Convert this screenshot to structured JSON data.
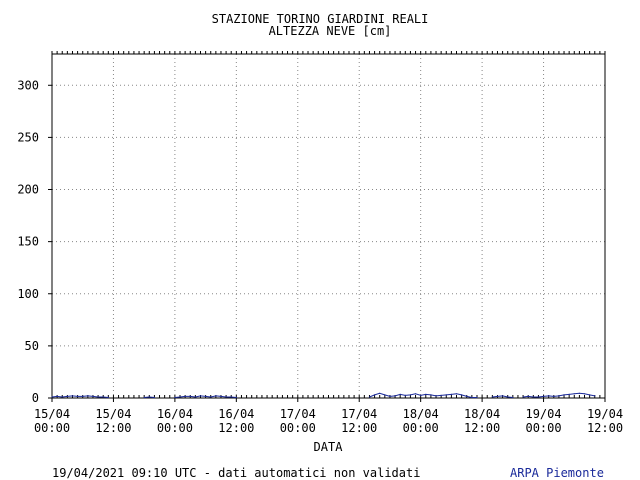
{
  "chart_data": {
    "type": "line",
    "title": "STAZIONE TORINO GIARDINI REALI",
    "subtitle": "ALTEZZA NEVE [cm]",
    "xlabel": "DATA",
    "ylabel": "",
    "x_tick_labels": [
      [
        "15/04",
        "00:00"
      ],
      [
        "15/04",
        "12:00"
      ],
      [
        "16/04",
        "00:00"
      ],
      [
        "16/04",
        "12:00"
      ],
      [
        "17/04",
        "00:00"
      ],
      [
        "17/04",
        "12:00"
      ],
      [
        "18/04",
        "00:00"
      ],
      [
        "18/04",
        "12:00"
      ],
      [
        "19/04",
        "00:00"
      ],
      [
        "19/04",
        "12:00"
      ]
    ],
    "x_ticks_hours": [
      0,
      12,
      24,
      36,
      48,
      60,
      72,
      84,
      96,
      108
    ],
    "xlim_hours": [
      0,
      108
    ],
    "y_ticks": [
      0,
      50,
      100,
      150,
      200,
      250,
      300
    ],
    "ylim": [
      0,
      330
    ],
    "grid": true,
    "series": [
      {
        "color": "#1a2a9a",
        "x_hours": [
          0,
          1,
          2,
          3,
          4,
          5,
          6,
          7,
          8,
          9,
          10,
          11,
          18,
          19,
          20,
          24,
          25,
          26,
          27,
          28,
          29,
          30,
          31,
          32,
          33,
          34,
          35,
          36,
          62,
          63,
          64,
          65,
          66,
          67,
          68,
          69,
          70,
          71,
          72,
          73,
          74,
          75,
          76,
          77,
          78,
          79,
          80,
          81,
          82,
          83,
          86,
          87,
          88,
          89,
          90,
          92,
          93,
          94,
          95,
          96,
          97,
          98,
          99,
          100,
          101,
          102,
          103,
          104,
          105,
          106
        ],
        "values": [
          1,
          1.5,
          1,
          1.5,
          2,
          1.5,
          1.5,
          2,
          1.5,
          1,
          1,
          0.5,
          0.5,
          1,
          0.5,
          0.5,
          1,
          1.5,
          1.5,
          1,
          2,
          1.5,
          1,
          2,
          1.5,
          1,
          1,
          0.5,
          1,
          3,
          4.5,
          3,
          1.5,
          2,
          3.5,
          2.5,
          3,
          4,
          2.5,
          3.5,
          3,
          2,
          2.5,
          3,
          3.5,
          4,
          3,
          1.5,
          0.5,
          0.5,
          1,
          1.5,
          2,
          1,
          0.5,
          1,
          1.5,
          1,
          1,
          1.5,
          2,
          1.5,
          2,
          3,
          3.5,
          4,
          4.5,
          4,
          3,
          2
        ]
      }
    ]
  },
  "footer": {
    "left_text": "19/04/2021 09:10 UTC - dati automatici non validati",
    "right_text": "ARPA Piemonte"
  }
}
